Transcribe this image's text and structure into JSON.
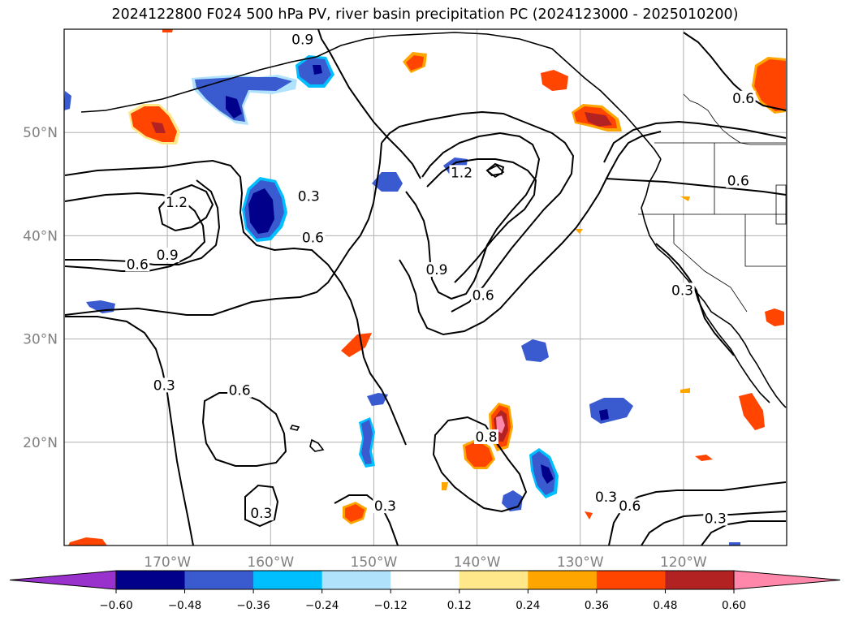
{
  "title": "2024122800 F024 500 hPa PV, river basin precipitation PC (2024123000 - 2025010200)",
  "map": {
    "lon_range": [
      -180,
      -110
    ],
    "lat_range": [
      10,
      60
    ],
    "grid": true,
    "lat_ticks": [
      {
        "value": 50,
        "label": "50°N"
      },
      {
        "value": 40,
        "label": "40°N"
      },
      {
        "value": 30,
        "label": "30°N"
      },
      {
        "value": 20,
        "label": "20°N"
      }
    ],
    "lon_ticks": [
      {
        "value": -170,
        "label": "170°W"
      },
      {
        "value": -160,
        "label": "160°W"
      },
      {
        "value": -150,
        "label": "150°W"
      },
      {
        "value": -140,
        "label": "140°W"
      },
      {
        "value": -130,
        "label": "130°W"
      },
      {
        "value": -120,
        "label": "120°W"
      }
    ],
    "contour_labels": [
      {
        "text": "0.9",
        "lon": -156.9,
        "lat": 58.8
      },
      {
        "text": "0.6",
        "lon": -114.2,
        "lat": 53.1
      },
      {
        "text": "0.6",
        "lon": -114.7,
        "lat": 45.1
      },
      {
        "text": "1.2",
        "lon": -169.1,
        "lat": 43.0
      },
      {
        "text": "0.3",
        "lon": -156.3,
        "lat": 43.6
      },
      {
        "text": "1.2",
        "lon": -141.5,
        "lat": 45.9
      },
      {
        "text": "0.6",
        "lon": -155.9,
        "lat": 39.6
      },
      {
        "text": "0.9",
        "lon": -170.0,
        "lat": 37.9
      },
      {
        "text": "0.6",
        "lon": -172.9,
        "lat": 37.0
      },
      {
        "text": "0.9",
        "lon": -143.9,
        "lat": 36.5
      },
      {
        "text": "0.6",
        "lon": -139.4,
        "lat": 34.0
      },
      {
        "text": "0.3",
        "lon": -120.1,
        "lat": 34.5
      },
      {
        "text": "0.3",
        "lon": -170.3,
        "lat": 25.3
      },
      {
        "text": "0.6",
        "lon": -163.0,
        "lat": 24.8
      },
      {
        "text": "0.6",
        "lon": -125.2,
        "lat": 13.6
      },
      {
        "text": "0.3",
        "lon": -127.5,
        "lat": 14.5
      },
      {
        "text": "0.3",
        "lon": -116.9,
        "lat": 12.4
      },
      {
        "text": "0.3",
        "lon": -160.9,
        "lat": 12.9
      },
      {
        "text": "0.3",
        "lon": -148.9,
        "lat": 13.6
      },
      {
        "text": "0.8",
        "lon": -139.1,
        "lat": 20.3
      }
    ]
  },
  "colorbar": {
    "boundaries": [
      -0.6,
      -0.48,
      -0.36,
      -0.24,
      -0.12,
      0.12,
      0.24,
      0.36,
      0.48,
      0.6
    ],
    "labels": [
      "−0.60",
      "−0.48",
      "−0.36",
      "−0.24",
      "−0.12",
      "0.12",
      "0.24",
      "0.36",
      "0.48",
      "0.60"
    ],
    "under_color": "#9932cc",
    "over_color": "#ff88aa",
    "colors": [
      "#00008b",
      "#3a5bcf",
      "#00bfff",
      "#b0e2fb",
      "#ffffff",
      "#ffe88a",
      "#ffa500",
      "#ff4500",
      "#b22222"
    ]
  }
}
